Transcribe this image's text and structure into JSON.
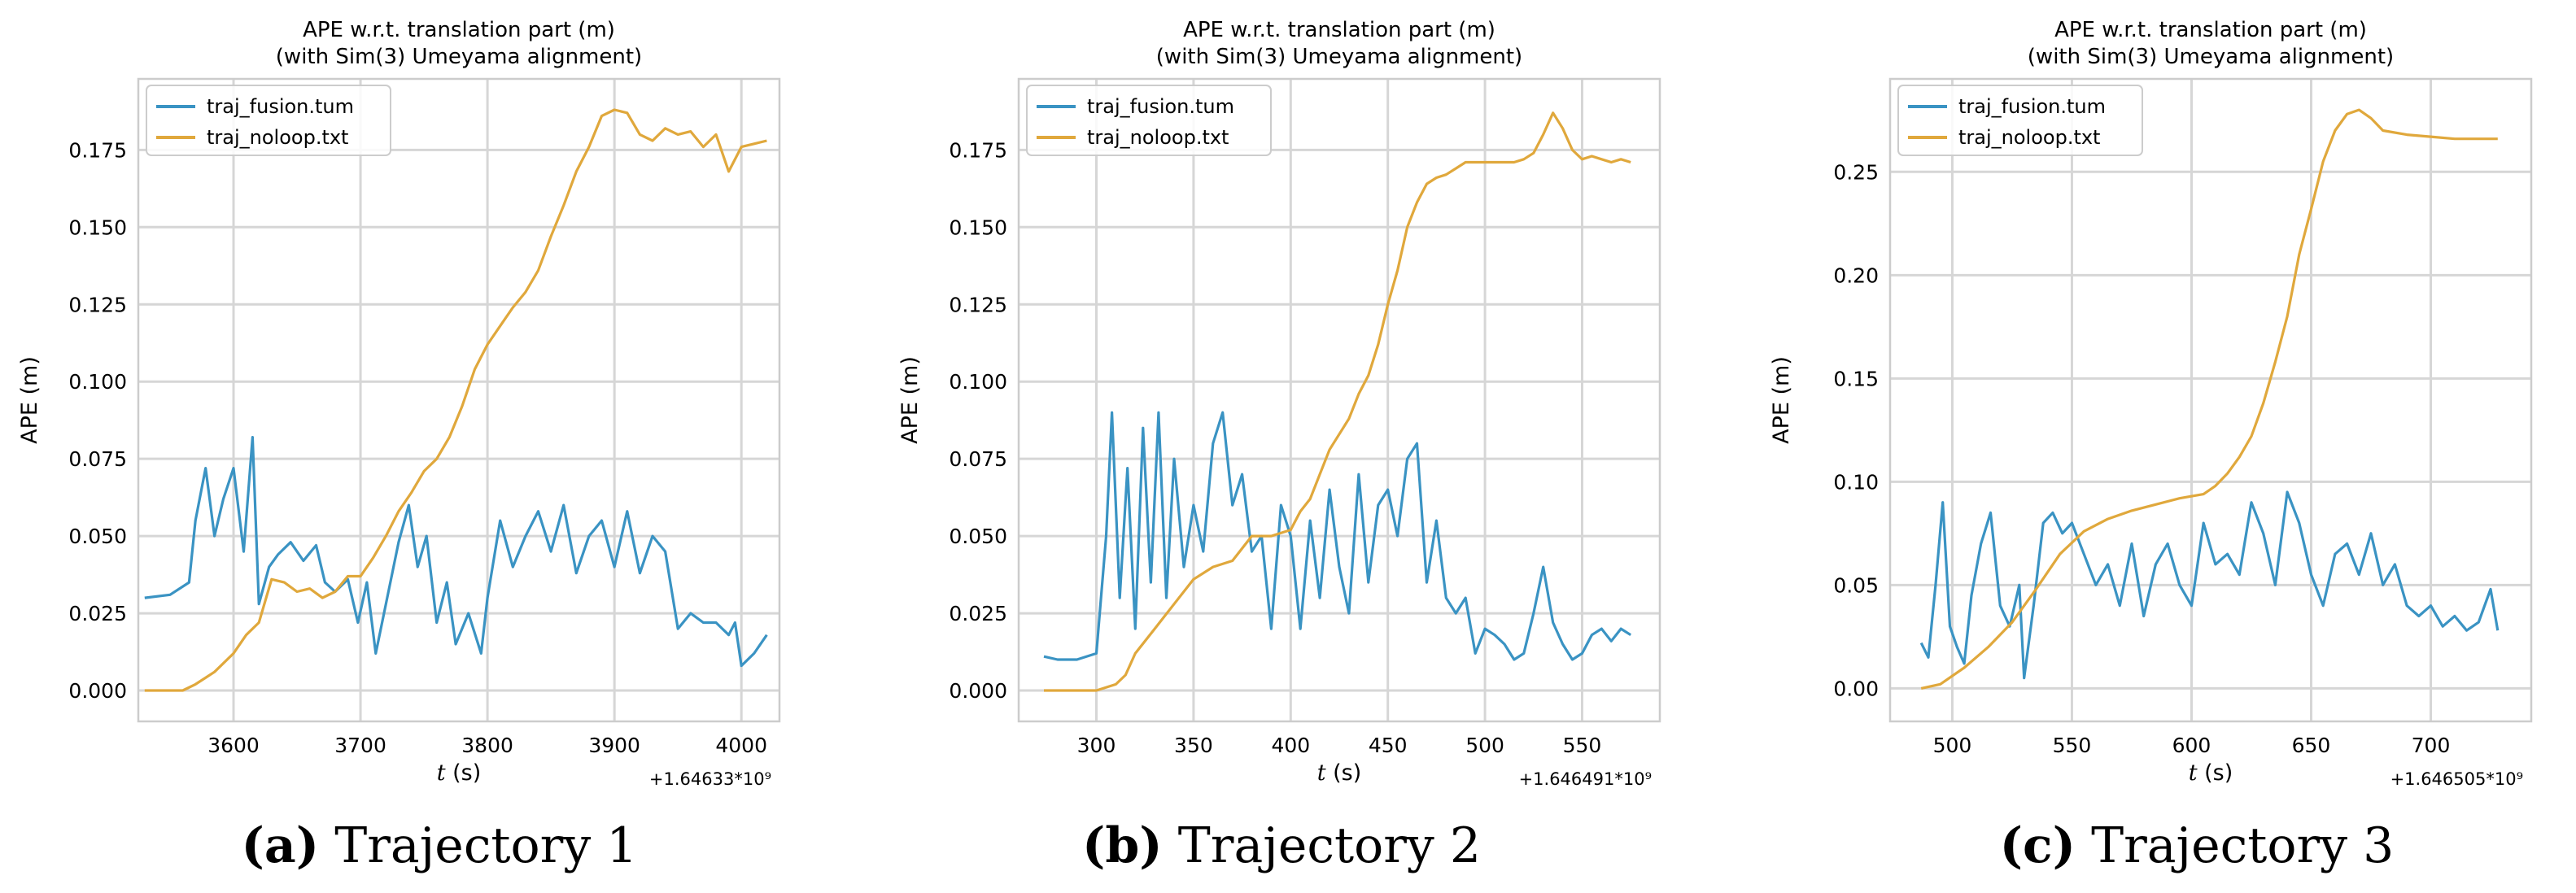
{
  "colors": {
    "fusion": "#3a93c3",
    "noloop": "#e0a83c",
    "grid": "#d6d6d6",
    "frame": "#cccccc"
  },
  "chart_data": [
    {
      "type": "line",
      "title_line1": "APE w.r.t. translation part (m)",
      "title_line2": "(with Sim(3) Umeyama alignment)",
      "xlabel_italic": "t",
      "xlabel_rest": " (s)",
      "ylabel": "APE (m)",
      "x_offset_label": "+1.64633*10⁹",
      "xlim": [
        3525,
        4030
      ],
      "ylim": [
        -0.01,
        0.198
      ],
      "xticks": [
        3600,
        3700,
        3800,
        3900,
        4000
      ],
      "xtick_labels": [
        "3600",
        "3700",
        "3800",
        "3900",
        "4000"
      ],
      "yticks": [
        0.0,
        0.025,
        0.05,
        0.075,
        0.1,
        0.125,
        0.15,
        0.175
      ],
      "ytick_labels": [
        "0.000",
        "0.025",
        "0.050",
        "0.075",
        "0.100",
        "0.125",
        "0.150",
        "0.175"
      ],
      "caption_letter": "(a)",
      "caption_text": "Trajectory 1",
      "legend_position": "top-left",
      "series": [
        {
          "name": "traj_fusion.tum",
          "key": "fusion",
          "x": [
            3530,
            3550,
            3565,
            3570,
            3578,
            3585,
            3592,
            3600,
            3608,
            3615,
            3620,
            3628,
            3635,
            3645,
            3655,
            3665,
            3672,
            3680,
            3690,
            3698,
            3705,
            3712,
            3720,
            3730,
            3738,
            3745,
            3752,
            3760,
            3768,
            3775,
            3785,
            3795,
            3800,
            3810,
            3820,
            3830,
            3840,
            3850,
            3860,
            3870,
            3880,
            3890,
            3900,
            3910,
            3920,
            3930,
            3940,
            3950,
            3960,
            3970,
            3980,
            3990,
            3995,
            4000,
            4010,
            4020
          ],
          "y": [
            0.03,
            0.031,
            0.035,
            0.055,
            0.072,
            0.05,
            0.062,
            0.072,
            0.045,
            0.082,
            0.028,
            0.04,
            0.044,
            0.048,
            0.042,
            0.047,
            0.035,
            0.032,
            0.036,
            0.022,
            0.035,
            0.012,
            0.028,
            0.048,
            0.06,
            0.04,
            0.05,
            0.022,
            0.035,
            0.015,
            0.025,
            0.012,
            0.03,
            0.055,
            0.04,
            0.05,
            0.058,
            0.045,
            0.06,
            0.038,
            0.05,
            0.055,
            0.04,
            0.058,
            0.038,
            0.05,
            0.045,
            0.02,
            0.025,
            0.022,
            0.022,
            0.018,
            0.022,
            0.008,
            0.012,
            0.018
          ]
        },
        {
          "name": "traj_noloop.txt",
          "key": "noloop",
          "x": [
            3530,
            3545,
            3560,
            3570,
            3585,
            3600,
            3610,
            3620,
            3630,
            3640,
            3650,
            3660,
            3670,
            3680,
            3690,
            3700,
            3710,
            3720,
            3730,
            3740,
            3750,
            3760,
            3770,
            3780,
            3790,
            3800,
            3810,
            3820,
            3830,
            3840,
            3850,
            3860,
            3870,
            3880,
            3890,
            3900,
            3910,
            3920,
            3930,
            3940,
            3950,
            3960,
            3970,
            3980,
            3990,
            4000,
            4010,
            4020
          ],
          "y": [
            0.0,
            0.0,
            0.0,
            0.002,
            0.006,
            0.012,
            0.018,
            0.022,
            0.036,
            0.035,
            0.032,
            0.033,
            0.03,
            0.032,
            0.037,
            0.037,
            0.043,
            0.05,
            0.058,
            0.064,
            0.071,
            0.075,
            0.082,
            0.092,
            0.104,
            0.112,
            0.118,
            0.124,
            0.129,
            0.136,
            0.147,
            0.157,
            0.168,
            0.176,
            0.186,
            0.188,
            0.187,
            0.18,
            0.178,
            0.182,
            0.18,
            0.181,
            0.176,
            0.18,
            0.168,
            0.176,
            0.177,
            0.178
          ]
        }
      ]
    },
    {
      "type": "line",
      "title_line1": "APE w.r.t. translation part (m)",
      "title_line2": "(with Sim(3) Umeyama alignment)",
      "xlabel_italic": "t",
      "xlabel_rest": " (s)",
      "ylabel": "APE (m)",
      "x_offset_label": "+1.646491*10⁹",
      "xlim": [
        260,
        590
      ],
      "ylim": [
        -0.01,
        0.198
      ],
      "xticks": [
        300,
        350,
        400,
        450,
        500,
        550
      ],
      "xtick_labels": [
        "300",
        "350",
        "400",
        "450",
        "500",
        "550"
      ],
      "yticks": [
        0.0,
        0.025,
        0.05,
        0.075,
        0.1,
        0.125,
        0.15,
        0.175
      ],
      "ytick_labels": [
        "0.000",
        "0.025",
        "0.050",
        "0.075",
        "0.100",
        "0.125",
        "0.150",
        "0.175"
      ],
      "caption_letter": "(b)",
      "caption_text": "Trajectory 2",
      "legend_position": "top-left",
      "series": [
        {
          "name": "traj_fusion.tum",
          "key": "fusion",
          "x": [
            273,
            280,
            290,
            300,
            305,
            308,
            312,
            316,
            320,
            324,
            328,
            332,
            336,
            340,
            345,
            350,
            355,
            360,
            365,
            370,
            375,
            380,
            385,
            390,
            395,
            400,
            405,
            410,
            415,
            420,
            425,
            430,
            435,
            440,
            445,
            450,
            455,
            460,
            465,
            470,
            475,
            480,
            485,
            490,
            495,
            500,
            505,
            510,
            515,
            520,
            525,
            530,
            535,
            540,
            545,
            550,
            555,
            560,
            565,
            570,
            575
          ],
          "y": [
            0.011,
            0.01,
            0.01,
            0.012,
            0.05,
            0.09,
            0.03,
            0.072,
            0.02,
            0.085,
            0.035,
            0.09,
            0.03,
            0.075,
            0.04,
            0.06,
            0.045,
            0.08,
            0.09,
            0.06,
            0.07,
            0.045,
            0.05,
            0.02,
            0.06,
            0.05,
            0.02,
            0.055,
            0.03,
            0.065,
            0.04,
            0.025,
            0.07,
            0.035,
            0.06,
            0.065,
            0.05,
            0.075,
            0.08,
            0.035,
            0.055,
            0.03,
            0.025,
            0.03,
            0.012,
            0.02,
            0.018,
            0.015,
            0.01,
            0.012,
            0.025,
            0.04,
            0.022,
            0.015,
            0.01,
            0.012,
            0.018,
            0.02,
            0.016,
            0.02,
            0.018
          ]
        },
        {
          "name": "traj_noloop.txt",
          "key": "noloop",
          "x": [
            273,
            285,
            300,
            310,
            315,
            320,
            330,
            340,
            350,
            360,
            370,
            380,
            390,
            400,
            405,
            410,
            415,
            420,
            425,
            430,
            435,
            440,
            445,
            450,
            455,
            460,
            465,
            470,
            475,
            480,
            485,
            490,
            495,
            500,
            505,
            510,
            515,
            520,
            525,
            530,
            535,
            540,
            545,
            550,
            555,
            560,
            565,
            570,
            575
          ],
          "y": [
            0.0,
            0.0,
            0.0,
            0.002,
            0.005,
            0.012,
            0.02,
            0.028,
            0.036,
            0.04,
            0.042,
            0.05,
            0.05,
            0.052,
            0.058,
            0.062,
            0.07,
            0.078,
            0.083,
            0.088,
            0.096,
            0.102,
            0.112,
            0.125,
            0.136,
            0.15,
            0.158,
            0.164,
            0.166,
            0.167,
            0.169,
            0.171,
            0.171,
            0.171,
            0.171,
            0.171,
            0.171,
            0.172,
            0.174,
            0.18,
            0.187,
            0.182,
            0.175,
            0.172,
            0.173,
            0.172,
            0.171,
            0.172,
            0.171
          ]
        }
      ]
    },
    {
      "type": "line",
      "title_line1": "APE w.r.t. translation part (m)",
      "title_line2": "(with Sim(3) Umeyama alignment)",
      "xlabel_italic": "t",
      "xlabel_rest": " (s)",
      "ylabel": "APE (m)",
      "x_offset_label": "+1.646505*10⁹",
      "xlim": [
        474,
        742
      ],
      "ylim": [
        -0.016,
        0.295
      ],
      "xticks": [
        500,
        550,
        600,
        650,
        700
      ],
      "xtick_labels": [
        "500",
        "550",
        "600",
        "650",
        "700"
      ],
      "yticks": [
        0.0,
        0.05,
        0.1,
        0.15,
        0.2,
        0.25
      ],
      "ytick_labels": [
        "0.00",
        "0.05",
        "0.10",
        "0.15",
        "0.20",
        "0.25"
      ],
      "caption_letter": "(c)",
      "caption_text": "Trajectory 3",
      "legend_position": "top-left",
      "series": [
        {
          "name": "traj_fusion.tum",
          "key": "fusion",
          "x": [
            487,
            490,
            493,
            496,
            499,
            502,
            505,
            508,
            512,
            516,
            520,
            524,
            528,
            530,
            534,
            538,
            542,
            546,
            550,
            555,
            560,
            565,
            570,
            575,
            580,
            585,
            590,
            595,
            600,
            605,
            610,
            615,
            620,
            625,
            630,
            635,
            640,
            645,
            650,
            655,
            660,
            665,
            670,
            675,
            680,
            685,
            690,
            695,
            700,
            705,
            710,
            715,
            720,
            725,
            728
          ],
          "y": [
            0.022,
            0.015,
            0.05,
            0.09,
            0.03,
            0.02,
            0.012,
            0.045,
            0.07,
            0.085,
            0.04,
            0.03,
            0.05,
            0.005,
            0.04,
            0.08,
            0.085,
            0.075,
            0.08,
            0.065,
            0.05,
            0.06,
            0.04,
            0.07,
            0.035,
            0.06,
            0.07,
            0.05,
            0.04,
            0.08,
            0.06,
            0.065,
            0.055,
            0.09,
            0.075,
            0.05,
            0.095,
            0.08,
            0.055,
            0.04,
            0.065,
            0.07,
            0.055,
            0.075,
            0.05,
            0.06,
            0.04,
            0.035,
            0.04,
            0.03,
            0.035,
            0.028,
            0.032,
            0.048,
            0.028
          ]
        },
        {
          "name": "traj_noloop.txt",
          "key": "noloop",
          "x": [
            487,
            495,
            505,
            515,
            525,
            535,
            545,
            555,
            565,
            575,
            585,
            595,
            605,
            610,
            615,
            620,
            625,
            630,
            635,
            640,
            645,
            650,
            655,
            660,
            665,
            670,
            675,
            680,
            690,
            700,
            710,
            720,
            728
          ],
          "y": [
            0.0,
            0.002,
            0.01,
            0.02,
            0.032,
            0.048,
            0.065,
            0.076,
            0.082,
            0.086,
            0.089,
            0.092,
            0.094,
            0.098,
            0.104,
            0.112,
            0.122,
            0.138,
            0.158,
            0.18,
            0.21,
            0.232,
            0.255,
            0.27,
            0.278,
            0.28,
            0.276,
            0.27,
            0.268,
            0.267,
            0.266,
            0.266,
            0.266
          ]
        }
      ]
    }
  ]
}
